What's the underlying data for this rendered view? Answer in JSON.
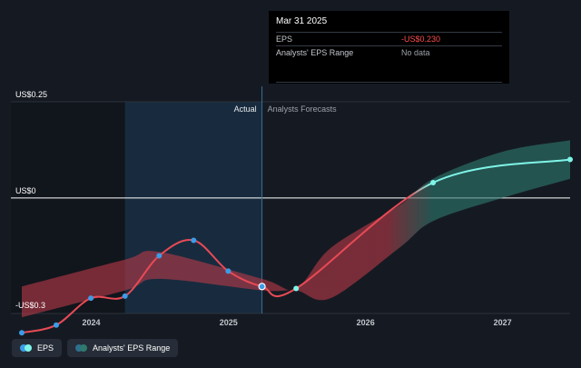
{
  "tooltip": {
    "date": "Mar 31 2025",
    "rows": [
      {
        "label": "EPS",
        "value": "-US$0.230"
      },
      {
        "label": "Analysts' EPS Range",
        "value": "No data"
      }
    ]
  },
  "labels": {
    "actual": "Actual",
    "forecast": "Analysts Forecasts"
  },
  "legend": {
    "eps": "EPS",
    "range": "Analysts' EPS Range"
  },
  "colors": {
    "background": "#151a22",
    "actual_line": "#e84a55",
    "forecast_line": "#7ff5e8",
    "point_past": "#3b9ce8",
    "range_past": "#b93a48",
    "range_future": "#2e7a6e",
    "highlight_band": "#1b3a56"
  },
  "chart_data": {
    "type": "line",
    "title": "",
    "xlabel": "",
    "ylabel": "",
    "x_ticks": [
      "2024",
      "2025",
      "2026",
      "2027"
    ],
    "y_ticks": [
      {
        "value": 0.25,
        "label": "US$0.25"
      },
      {
        "value": 0,
        "label": "US$0"
      },
      {
        "value": -0.3,
        "label": "-US$0.3"
      }
    ],
    "ylim": [
      -0.35,
      0.3
    ],
    "xlim": [
      "2023-06-01",
      "2027-06-30"
    ],
    "divider_date": "2025-03-31",
    "highlight_start": "2024-03-31",
    "series": [
      {
        "name": "EPS",
        "points": [
          {
            "date": "2023-06-30",
            "value": -0.35
          },
          {
            "date": "2023-09-30",
            "value": -0.33
          },
          {
            "date": "2023-12-31",
            "value": -0.26
          },
          {
            "date": "2024-03-31",
            "value": -0.255
          },
          {
            "date": "2024-06-30",
            "value": -0.15
          },
          {
            "date": "2024-09-30",
            "value": -0.11
          },
          {
            "date": "2024-12-31",
            "value": -0.19
          },
          {
            "date": "2025-03-31",
            "value": -0.23
          },
          {
            "date": "2025-06-30",
            "value": -0.235
          },
          {
            "date": "2026-06-30",
            "value": 0.04
          },
          {
            "date": "2027-06-30",
            "value": 0.1
          }
        ]
      }
    ],
    "range": [
      {
        "date": "2023-06-30",
        "low": -0.31,
        "high": -0.23
      },
      {
        "date": "2024-03-31",
        "low": -0.24,
        "high": -0.16
      },
      {
        "date": "2024-06-30",
        "low": -0.21,
        "high": -0.14
      },
      {
        "date": "2025-03-31",
        "low": -0.24,
        "high": -0.21
      },
      {
        "date": "2025-06-30",
        "low": -0.24,
        "high": -0.235
      },
      {
        "date": "2025-09-30",
        "low": -0.26,
        "high": -0.13
      },
      {
        "date": "2026-03-31",
        "low": -0.13,
        "high": -0.02
      },
      {
        "date": "2026-06-30",
        "low": -0.06,
        "high": 0.05
      },
      {
        "date": "2026-12-31",
        "low": 0.0,
        "high": 0.12
      },
      {
        "date": "2027-06-30",
        "low": 0.05,
        "high": 0.15
      }
    ]
  }
}
